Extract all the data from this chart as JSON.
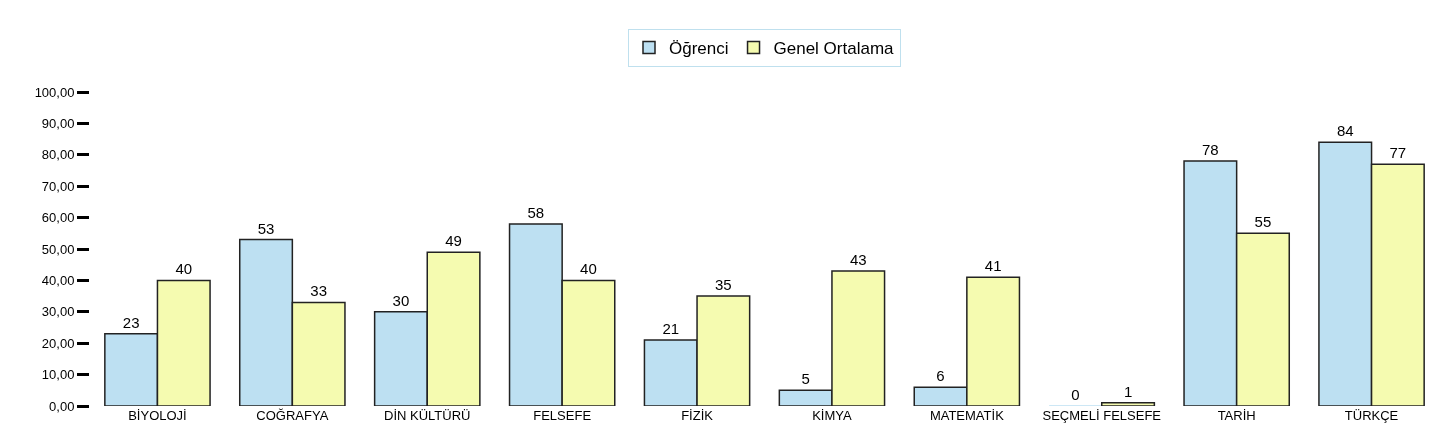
{
  "chart_data": {
    "type": "bar",
    "categories": [
      "BİYOLOJİ",
      "COĞRAFYA",
      "DİN KÜLTÜRÜ",
      "FELSEFE",
      "FİZİK",
      "KİMYA",
      "MATEMATİK",
      "SEÇMELİ FELSEFE",
      "TARİH",
      "TÜRKÇE"
    ],
    "series": [
      {
        "name": "Öğrenci",
        "color": "#bde0f2",
        "values": [
          23,
          53,
          30,
          58,
          21,
          5,
          6,
          0,
          78,
          84
        ]
      },
      {
        "name": "Genel Ortalama",
        "color": "#f5fbb0",
        "values": [
          40,
          33,
          49,
          40,
          35,
          43,
          41,
          1,
          55,
          77
        ]
      }
    ],
    "ylim": [
      0,
      100
    ],
    "yticks": [
      {
        "value": 0,
        "label": "0,00"
      },
      {
        "value": 10,
        "label": "10,00"
      },
      {
        "value": 20,
        "label": "20,00"
      },
      {
        "value": 30,
        "label": "30,00"
      },
      {
        "value": 40,
        "label": "40,00"
      },
      {
        "value": 50,
        "label": "50,00"
      },
      {
        "value": 60,
        "label": "60,00"
      },
      {
        "value": 70,
        "label": "70,00"
      },
      {
        "value": 80,
        "label": "80,00"
      },
      {
        "value": 90,
        "label": "90,00"
      },
      {
        "value": 100,
        "label": "100,00"
      }
    ],
    "data_labels": true,
    "legend": "top"
  }
}
